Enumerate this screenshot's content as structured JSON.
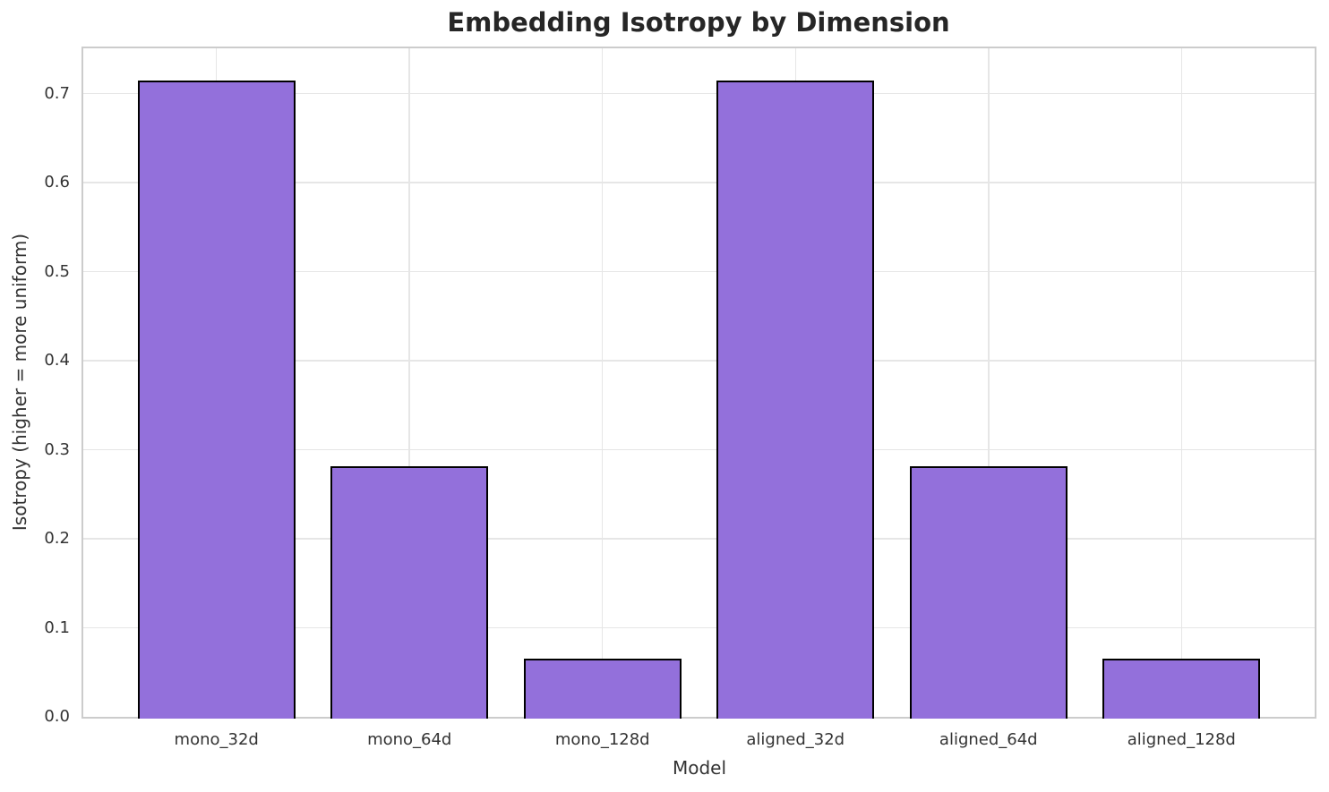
{
  "chart_data": {
    "type": "bar",
    "title": "Embedding Isotropy by Dimension",
    "xlabel": "Model",
    "ylabel": "Isotropy (higher = more uniform)",
    "categories": [
      "mono_32d",
      "mono_64d",
      "mono_128d",
      "aligned_32d",
      "aligned_64d",
      "aligned_128d"
    ],
    "values": [
      0.715,
      0.281,
      0.065,
      0.715,
      0.281,
      0.065
    ],
    "ylim": [
      0,
      0.751
    ],
    "yticks": [
      "0.0",
      "0.1",
      "0.2",
      "0.3",
      "0.4",
      "0.5",
      "0.6",
      "0.7"
    ],
    "grid": true,
    "legend_position": "none",
    "colors": {
      "bar_fill": "#9370DB",
      "bar_edge": "#000000",
      "grid": "#E6E6E6",
      "spine": "#CCCCCC",
      "title_text": "#262626",
      "tick_text": "#333333",
      "background": "#FFFFFF"
    }
  }
}
